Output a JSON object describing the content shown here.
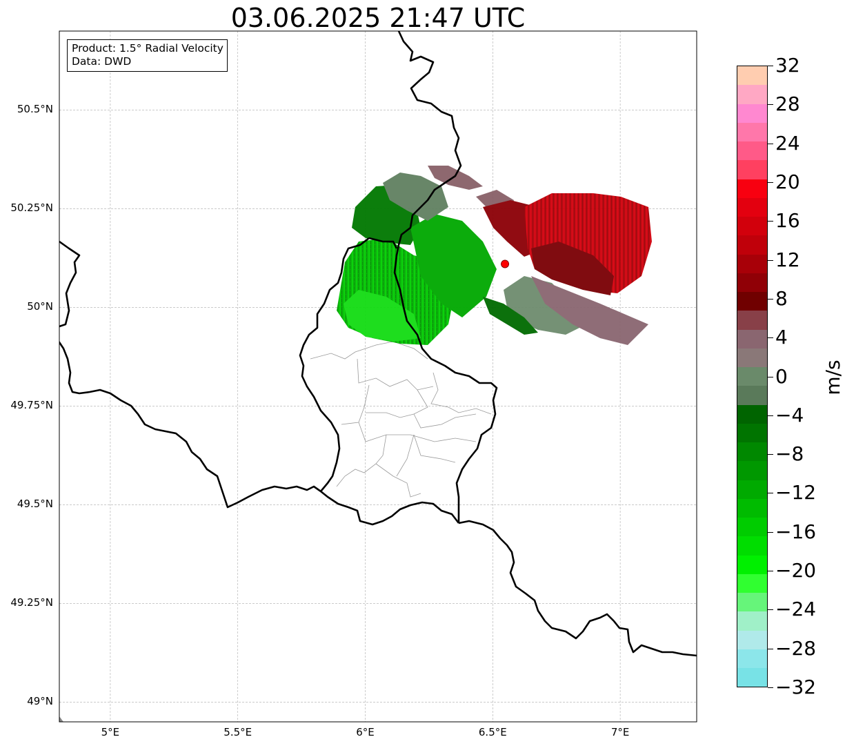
{
  "title": "03.06.2025 21:47 UTC",
  "info_box": {
    "product_line": "Product: 1.5° Radial Velocity",
    "data_line": "Data: DWD"
  },
  "axes": {
    "lon_range": [
      4.8,
      7.3
    ],
    "lat_range": [
      48.95,
      50.7
    ],
    "lon_ticks": [
      {
        "value": 5.0,
        "label": "5°E"
      },
      {
        "value": 5.5,
        "label": "5.5°E"
      },
      {
        "value": 6.0,
        "label": "6°E"
      },
      {
        "value": 6.5,
        "label": "6.5°E"
      },
      {
        "value": 7.0,
        "label": "7°E"
      }
    ],
    "lat_ticks": [
      {
        "value": 50.5,
        "label": "50.5°N"
      },
      {
        "value": 50.25,
        "label": "50.25°N"
      },
      {
        "value": 50.0,
        "label": "50°N"
      },
      {
        "value": 49.75,
        "label": "49.75°N"
      },
      {
        "value": 49.5,
        "label": "49.5°N"
      },
      {
        "value": 49.25,
        "label": "49.25°N"
      },
      {
        "value": 49.0,
        "label": "49°N"
      }
    ],
    "gridlines": true
  },
  "radar_site": {
    "lon": 6.548,
    "lat": 50.11,
    "color": "#ff0000"
  },
  "colorbar": {
    "unit": "m/s",
    "min": -32,
    "max": 32,
    "tick_values": [
      32,
      28,
      24,
      20,
      16,
      12,
      8,
      4,
      0,
      -4,
      -8,
      -12,
      -16,
      -20,
      -24,
      -28,
      -32
    ],
    "tick_labels": [
      "32",
      "28",
      "24",
      "20",
      "16",
      "12",
      "8",
      "4",
      "0",
      "−4",
      "−8",
      "−12",
      "−16",
      "−20",
      "−24",
      "−28",
      "−32"
    ],
    "colors_top_to_bottom": [
      "#ffcdb0",
      "#ffa8c4",
      "#ff88d0",
      "#ff77aa",
      "#ff5a88",
      "#ff4060",
      "#f80010",
      "#e3000f",
      "#d2000c",
      "#c0000a",
      "#a80008",
      "#900006",
      "#700000",
      "#884048",
      "#8a6670",
      "#8a7878",
      "#6a8a6a",
      "#5a7a5a",
      "#006400",
      "#007400",
      "#008800",
      "#009800",
      "#00aa00",
      "#00bb00",
      "#00cc00",
      "#00dd00",
      "#00f000",
      "#30ff30",
      "#66f57a",
      "#a0f0c8",
      "#b0eaea",
      "#8ce6ea",
      "#78e2e6"
    ]
  },
  "echo_regions": [
    {
      "name": "inbound-green-core",
      "color": "#00a000",
      "velocity": -12
    },
    {
      "name": "inbound-bright-green",
      "color": "#10e010",
      "velocity": -18
    },
    {
      "name": "inbound-dark-green",
      "color": "#006a00",
      "velocity": -6
    },
    {
      "name": "near-zero-grey-green",
      "color": "#608060",
      "velocity": -2
    },
    {
      "name": "outbound-dark-red",
      "color": "#800000",
      "velocity": 10
    },
    {
      "name": "outbound-red",
      "color": "#e00010",
      "velocity": 17
    },
    {
      "name": "outbound-mauve",
      "color": "#886068",
      "velocity": 4
    }
  ]
}
